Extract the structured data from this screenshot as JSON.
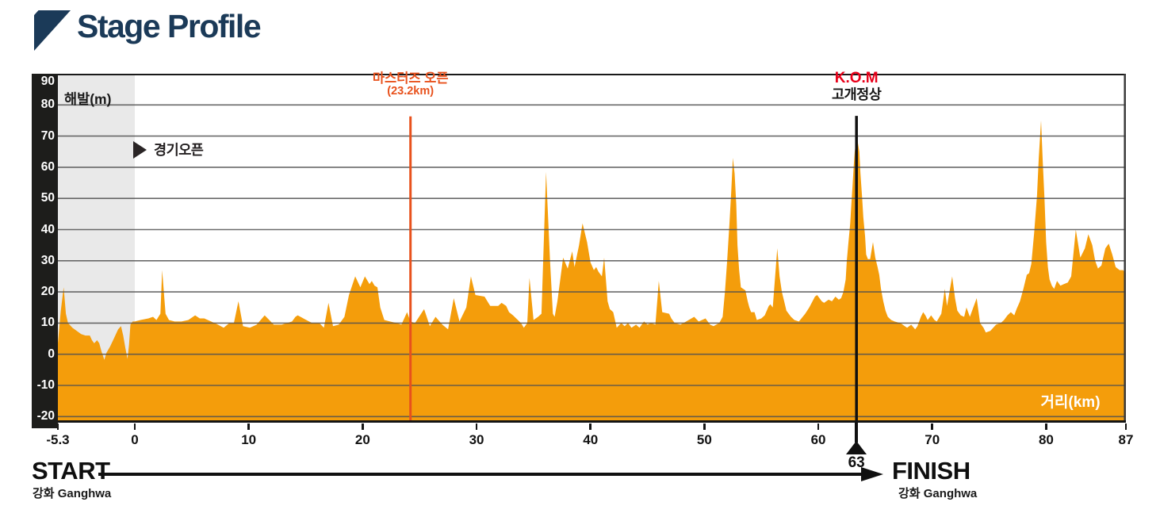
{
  "title": {
    "text": "Stage Profile"
  },
  "colors": {
    "title_navy": "#1B3A58",
    "profile_fill": "#F49D0B",
    "neutral_zone_gray": "#E9E9E9",
    "gridline": "#515151",
    "axis_bar": "#1D1D1B",
    "masters_line": "#E8511C",
    "kom_red": "#E8001A",
    "black": "#111111"
  },
  "footer": {
    "start": {
      "label": "START",
      "location": "강화 Ganghwa"
    },
    "finish": {
      "label": "FINISH",
      "location": "강화 Ganghwa"
    }
  },
  "chart_data": {
    "type": "area",
    "title": "Stage Profile",
    "ylabel": "해발(m)",
    "xlabel": "거리(km)",
    "xlim": [
      -5.3,
      87
    ],
    "ylim": [
      -20,
      90
    ],
    "x_ticks": [
      -5.3,
      0,
      10,
      20,
      30,
      40,
      50,
      60,
      70,
      80,
      87
    ],
    "y_ticks": [
      90,
      80,
      70,
      60,
      50,
      40,
      30,
      20,
      10,
      0,
      -10,
      -20
    ],
    "grid": true,
    "legend": "none",
    "neutral_zone": {
      "from_km": -5.3,
      "to_km": 0
    },
    "markers": {
      "race_open": {
        "label": "경기오픈",
        "km": 0
      },
      "masters_open": {
        "label": "마스터즈 오픈",
        "sublabel": "(23.2km)",
        "km": 23.2,
        "line_km": 24.2
      },
      "kom": {
        "label": "K.O.M",
        "sublabel": "고개정상",
        "axis_label": "63",
        "km": 63,
        "line_km": 63.35,
        "summit_elevation_m": 69.5
      }
    },
    "profile": [
      [
        -5.3,
        3.5
      ],
      [
        -5.1,
        14
      ],
      [
        -4.9,
        21.5
      ],
      [
        -4.75,
        13
      ],
      [
        -4.6,
        10
      ],
      [
        -4.3,
        8.5
      ],
      [
        -4,
        7.5
      ],
      [
        -3.7,
        6.5
      ],
      [
        -3.4,
        6
      ],
      [
        -3.1,
        6
      ],
      [
        -2.95,
        4.5
      ],
      [
        -2.8,
        3.5
      ],
      [
        -2.6,
        4.5
      ],
      [
        -2.45,
        3.5
      ],
      [
        -2.3,
        1
      ],
      [
        -2.1,
        -1.8
      ],
      [
        -1.95,
        0.5
      ],
      [
        -1.7,
        2.5
      ],
      [
        -1.45,
        5
      ],
      [
        -1.15,
        8
      ],
      [
        -0.95,
        9
      ],
      [
        -0.8,
        6
      ],
      [
        -0.65,
        2
      ],
      [
        -0.5,
        -1.5
      ],
      [
        -0.4,
        3
      ],
      [
        -0.3,
        9.5
      ],
      [
        -0.15,
        10.5
      ],
      [
        0,
        10.5
      ],
      [
        0.5,
        11
      ],
      [
        1.2,
        11.5
      ],
      [
        1.6,
        12
      ],
      [
        1.9,
        11
      ],
      [
        2.25,
        13
      ],
      [
        2.4,
        27
      ],
      [
        2.7,
        13
      ],
      [
        3,
        11
      ],
      [
        3.5,
        10.5
      ],
      [
        4.1,
        10.5
      ],
      [
        4.7,
        11
      ],
      [
        5.3,
        12.5
      ],
      [
        5.7,
        11.5
      ],
      [
        6.1,
        11.5
      ],
      [
        6.7,
        10.5
      ],
      [
        7.3,
        9.5
      ],
      [
        7.8,
        8.5
      ],
      [
        8.3,
        10
      ],
      [
        8.7,
        10
      ],
      [
        9.1,
        17
      ],
      [
        9.5,
        9
      ],
      [
        10.1,
        8.5
      ],
      [
        10.7,
        9.5
      ],
      [
        11.4,
        12.5
      ],
      [
        12.2,
        9.5
      ],
      [
        12.9,
        9.5
      ],
      [
        13.8,
        10.5
      ],
      [
        14.1,
        12
      ],
      [
        14.3,
        12.5
      ],
      [
        15.3,
        10.5
      ],
      [
        15.6,
        10
      ],
      [
        16.2,
        10
      ],
      [
        16.6,
        8.5
      ],
      [
        17,
        16.5
      ],
      [
        17.4,
        9
      ],
      [
        17.9,
        9.5
      ],
      [
        18.4,
        12
      ],
      [
        18.8,
        19
      ],
      [
        19.35,
        25
      ],
      [
        19.8,
        21.5
      ],
      [
        20.2,
        25
      ],
      [
        20.6,
        22.5
      ],
      [
        20.8,
        23.5
      ],
      [
        21.05,
        22
      ],
      [
        21.3,
        21.5
      ],
      [
        21.55,
        15
      ],
      [
        21.9,
        11
      ],
      [
        22.4,
        10.5
      ],
      [
        23,
        10
      ],
      [
        23.4,
        9.5
      ],
      [
        23.9,
        13.5
      ],
      [
        24.2,
        10.5
      ],
      [
        24.6,
        10
      ],
      [
        25.4,
        14.5
      ],
      [
        25.9,
        9
      ],
      [
        26.4,
        12
      ],
      [
        27,
        9.5
      ],
      [
        27.5,
        8
      ],
      [
        28,
        18
      ],
      [
        28.5,
        10.5
      ],
      [
        29.1,
        15
      ],
      [
        29.5,
        25
      ],
      [
        29.9,
        19
      ],
      [
        30.7,
        18.5
      ],
      [
        31.2,
        15.5
      ],
      [
        31.9,
        15.5
      ],
      [
        32.2,
        16.5
      ],
      [
        32.6,
        15.5
      ],
      [
        32.85,
        13.5
      ],
      [
        33.2,
        12.5
      ],
      [
        33.9,
        10
      ],
      [
        34.15,
        8.5
      ],
      [
        34.45,
        10
      ],
      [
        34.65,
        24.5
      ],
      [
        35,
        11
      ],
      [
        35.4,
        12
      ],
      [
        35.7,
        13
      ],
      [
        36.1,
        58.5
      ],
      [
        36.45,
        30
      ],
      [
        36.7,
        13
      ],
      [
        36.85,
        12
      ],
      [
        37.1,
        17
      ],
      [
        37.6,
        31
      ],
      [
        38,
        27.5
      ],
      [
        38.4,
        33
      ],
      [
        38.6,
        28
      ],
      [
        39,
        35
      ],
      [
        39.3,
        42
      ],
      [
        39.7,
        36
      ],
      [
        40,
        29.5
      ],
      [
        40.3,
        27
      ],
      [
        40.5,
        28
      ],
      [
        40.7,
        26.5
      ],
      [
        41,
        25
      ],
      [
        41.2,
        31
      ],
      [
        41.5,
        17
      ],
      [
        41.7,
        14.5
      ],
      [
        42,
        13.5
      ],
      [
        42.3,
        8.5
      ],
      [
        42.7,
        10
      ],
      [
        43,
        9
      ],
      [
        43.3,
        10
      ],
      [
        43.6,
        8.5
      ],
      [
        44,
        9.5
      ],
      [
        44.3,
        8.5
      ],
      [
        44.7,
        10.5
      ],
      [
        45,
        9.5
      ],
      [
        45.3,
        10
      ],
      [
        45.7,
        9.5
      ],
      [
        46,
        23.5
      ],
      [
        46.3,
        13.5
      ],
      [
        46.9,
        13
      ],
      [
        47.1,
        11.5
      ],
      [
        47.4,
        10
      ],
      [
        47.9,
        9.5
      ],
      [
        48.4,
        10.5
      ],
      [
        49.1,
        12
      ],
      [
        49.5,
        10.5
      ],
      [
        50.1,
        11.5
      ],
      [
        50.5,
        9.5
      ],
      [
        50.8,
        9
      ],
      [
        51.3,
        10
      ],
      [
        51.6,
        12
      ],
      [
        51.8,
        20
      ],
      [
        52,
        30
      ],
      [
        52.2,
        42
      ],
      [
        52.35,
        52
      ],
      [
        52.5,
        63
      ],
      [
        52.65,
        58
      ],
      [
        52.8,
        48
      ],
      [
        52.9,
        35
      ],
      [
        53.05,
        27
      ],
      [
        53.2,
        21.5
      ],
      [
        53.6,
        20.5
      ],
      [
        53.8,
        17
      ],
      [
        53.95,
        15
      ],
      [
        54.1,
        13.5
      ],
      [
        54.4,
        13.5
      ],
      [
        54.6,
        11
      ],
      [
        55,
        11.5
      ],
      [
        55.3,
        12.5
      ],
      [
        55.65,
        15.5
      ],
      [
        55.8,
        16
      ],
      [
        56,
        15
      ],
      [
        56.4,
        34
      ],
      [
        56.6,
        25
      ],
      [
        56.8,
        20
      ],
      [
        57,
        17
      ],
      [
        57.2,
        14
      ],
      [
        57.6,
        12
      ],
      [
        57.9,
        11
      ],
      [
        58.3,
        10.5
      ],
      [
        58.85,
        13
      ],
      [
        59.2,
        15
      ],
      [
        59.7,
        18.5
      ],
      [
        59.9,
        19
      ],
      [
        60.3,
        17
      ],
      [
        60.5,
        16.5
      ],
      [
        60.9,
        17.5
      ],
      [
        61.2,
        17
      ],
      [
        61.5,
        18.5
      ],
      [
        61.8,
        17.5
      ],
      [
        62,
        18
      ],
      [
        62.2,
        20
      ],
      [
        62.4,
        24
      ],
      [
        62.5,
        30
      ],
      [
        62.65,
        36
      ],
      [
        62.8,
        42
      ],
      [
        62.9,
        48
      ],
      [
        63,
        54
      ],
      [
        63.1,
        60
      ],
      [
        63.2,
        65
      ],
      [
        63.3,
        68
      ],
      [
        63.4,
        69.5
      ],
      [
        63.6,
        65
      ],
      [
        63.7,
        58
      ],
      [
        63.85,
        50
      ],
      [
        63.95,
        44
      ],
      [
        64.1,
        38
      ],
      [
        64.2,
        32
      ],
      [
        64.35,
        30.5
      ],
      [
        64.55,
        30.5
      ],
      [
        64.8,
        36
      ],
      [
        65,
        31
      ],
      [
        65.2,
        28
      ],
      [
        65.35,
        25.5
      ],
      [
        65.5,
        21
      ],
      [
        65.7,
        17
      ],
      [
        65.9,
        14
      ],
      [
        66.1,
        12
      ],
      [
        66.4,
        11
      ],
      [
        66.7,
        10.5
      ],
      [
        67.2,
        10
      ],
      [
        67.8,
        8.5
      ],
      [
        68.15,
        9.5
      ],
      [
        68.5,
        8
      ],
      [
        68.7,
        9
      ],
      [
        69,
        12
      ],
      [
        69.2,
        13.5
      ],
      [
        69.4,
        12.5
      ],
      [
        69.6,
        11
      ],
      [
        69.9,
        12.5
      ],
      [
        70.2,
        11
      ],
      [
        70.4,
        10.5
      ],
      [
        70.8,
        13
      ],
      [
        71.1,
        21
      ],
      [
        71.3,
        15.5
      ],
      [
        71.75,
        25
      ],
      [
        72,
        18
      ],
      [
        72.2,
        14
      ],
      [
        72.5,
        12.5
      ],
      [
        72.8,
        12
      ],
      [
        73,
        15
      ],
      [
        73.3,
        12
      ],
      [
        73.9,
        18
      ],
      [
        74.2,
        10
      ],
      [
        74.5,
        8.5
      ],
      [
        74.7,
        7
      ],
      [
        75.1,
        7.5
      ],
      [
        75.6,
        9.5
      ],
      [
        76,
        10
      ],
      [
        76.3,
        11
      ],
      [
        76.6,
        12.5
      ],
      [
        76.9,
        13.5
      ],
      [
        77.2,
        12.5
      ],
      [
        77.4,
        14.5
      ],
      [
        77.7,
        17
      ],
      [
        78,
        21
      ],
      [
        78.3,
        25.5
      ],
      [
        78.5,
        26
      ],
      [
        78.7,
        29
      ],
      [
        78.95,
        39
      ],
      [
        79.2,
        51
      ],
      [
        79.35,
        63
      ],
      [
        79.55,
        75
      ],
      [
        79.7,
        62
      ],
      [
        79.85,
        50
      ],
      [
        80,
        36
      ],
      [
        80.15,
        28
      ],
      [
        80.3,
        24
      ],
      [
        80.5,
        22
      ],
      [
        80.7,
        21
      ],
      [
        80.95,
        23.5
      ],
      [
        81.25,
        22
      ],
      [
        81.55,
        22.5
      ],
      [
        81.9,
        23
      ],
      [
        82.2,
        25
      ],
      [
        82.6,
        40
      ],
      [
        83,
        31
      ],
      [
        83.4,
        34
      ],
      [
        83.7,
        38.5
      ],
      [
        84.05,
        35
      ],
      [
        84.3,
        30
      ],
      [
        84.55,
        27.5
      ],
      [
        84.85,
        28.5
      ],
      [
        85.2,
        34
      ],
      [
        85.5,
        35.5
      ],
      [
        85.8,
        32
      ],
      [
        86.1,
        28
      ],
      [
        86.45,
        27
      ],
      [
        86.75,
        27
      ],
      [
        87,
        26
      ]
    ]
  }
}
